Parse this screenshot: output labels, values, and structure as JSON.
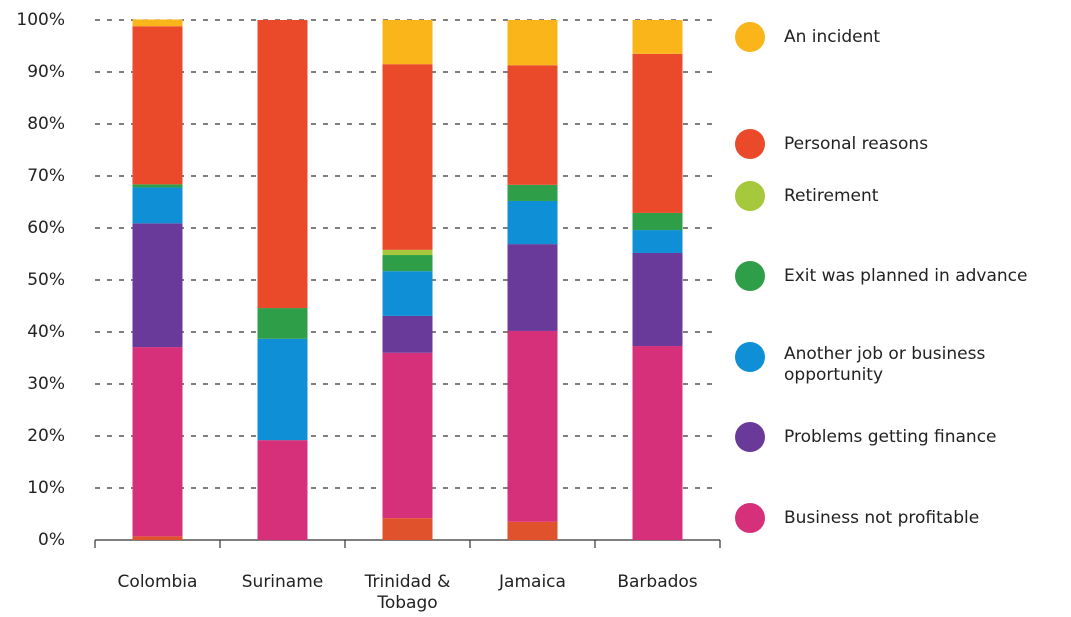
{
  "chart_data": {
    "type": "bar",
    "stacked": true,
    "categories": [
      "Colombia",
      "Suriname",
      "Trinidad & Tobago",
      "Jamaica",
      "Barbados"
    ],
    "series": [
      {
        "color": "#e0522c",
        "values": [
          0.7,
          0,
          4.2,
          3.5,
          0
        ]
      },
      {
        "name": "Business not profitable",
        "color": "#d6307a",
        "values": [
          36.4,
          19.2,
          31.8,
          36.7,
          37.3
        ]
      },
      {
        "name": "Problems getting finance",
        "color": "#6a3a9b",
        "values": [
          23.8,
          0,
          7.1,
          16.7,
          17.9
        ]
      },
      {
        "name": "Another job or business opportunity",
        "color": "#0e8fd6",
        "values": [
          6.9,
          19.5,
          8.6,
          8.3,
          4.4
        ]
      },
      {
        "name": "Exit was planned in advance",
        "color": "#2f9e48",
        "values": [
          0.6,
          5.9,
          3.1,
          3.1,
          3.3
        ]
      },
      {
        "name": "Retirement",
        "color": "#a6c83c",
        "values": [
          0,
          0,
          1.0,
          0,
          0
        ]
      },
      {
        "name": "Personal reasons",
        "color": "#ea4a2a",
        "values": [
          30.4,
          55.4,
          35.7,
          23.0,
          30.6
        ]
      },
      {
        "name": "An incident",
        "color": "#f9b51a",
        "values": [
          1.3,
          0,
          8.5,
          8.7,
          6.5
        ]
      }
    ],
    "ylim": [
      0,
      100
    ],
    "yticks": [
      {
        "value": 0,
        "label": "0%"
      },
      {
        "value": 10,
        "label": "10%"
      },
      {
        "value": 20,
        "label": "20%"
      },
      {
        "value": 30,
        "label": "30%"
      },
      {
        "value": 40,
        "label": "40%"
      },
      {
        "value": 50,
        "label": "50%"
      },
      {
        "value": 60,
        "label": "60%"
      },
      {
        "value": 70,
        "label": "70%"
      },
      {
        "value": 80,
        "label": "80%"
      },
      {
        "value": 90,
        "label": "90%"
      },
      {
        "value": 100,
        "label": "100%"
      }
    ],
    "grid": true,
    "legend": "right"
  }
}
